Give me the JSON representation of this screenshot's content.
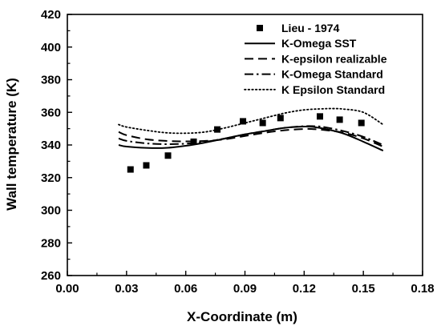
{
  "chart_data": {
    "type": "line",
    "title": "",
    "xlabel": "X-Coordinate (m)",
    "ylabel": "Wall temperature (K)",
    "xlim": [
      0.0,
      0.18
    ],
    "ylim": [
      260,
      420
    ],
    "x_ticks": [
      0.0,
      0.03,
      0.06,
      0.09,
      0.12,
      0.15,
      0.18
    ],
    "x_tick_labels": [
      "0.00",
      "0.03",
      "0.06",
      "0.09",
      "0.12",
      "0.15",
      "0.18"
    ],
    "y_ticks": [
      260,
      280,
      300,
      320,
      340,
      360,
      380,
      400,
      420
    ],
    "y_tick_labels": [
      "260",
      "280",
      "300",
      "320",
      "340",
      "360",
      "380",
      "400",
      "420"
    ],
    "grid": false,
    "legend_position": "top-right",
    "series": [
      {
        "name": "Lieu - 1974",
        "kind": "scatter",
        "marker": "square",
        "x": [
          0.032,
          0.04,
          0.051,
          0.064,
          0.076,
          0.089,
          0.099,
          0.108,
          0.128,
          0.138,
          0.149
        ],
        "y": [
          325,
          327.5,
          333.5,
          342,
          349.5,
          354.5,
          353.5,
          356.5,
          357.5,
          355.5,
          353.5
        ]
      },
      {
        "name": "K-Omega SST",
        "kind": "line",
        "style": "solid",
        "x": [
          0.026,
          0.03,
          0.04,
          0.05,
          0.06,
          0.07,
          0.08,
          0.09,
          0.1,
          0.11,
          0.12,
          0.125,
          0.13,
          0.14,
          0.15,
          0.16
        ],
        "y": [
          340,
          339,
          338.2,
          338.2,
          339.5,
          341.5,
          344,
          346.5,
          348.5,
          350.5,
          351.3,
          351,
          350,
          347,
          342,
          336.5
        ]
      },
      {
        "name": "K-epsilon realizable",
        "kind": "line",
        "style": "dashed",
        "x": [
          0.026,
          0.03,
          0.04,
          0.05,
          0.06,
          0.07,
          0.08,
          0.09,
          0.1,
          0.11,
          0.12,
          0.125,
          0.13,
          0.14,
          0.15,
          0.16
        ],
        "y": [
          348,
          346,
          343.5,
          342.5,
          342.2,
          342.5,
          343.5,
          345.5,
          347.5,
          349,
          349.8,
          349.7,
          349.2,
          347.5,
          344,
          339
        ]
      },
      {
        "name": "K-Omega Standard",
        "kind": "line",
        "style": "dash-dot",
        "x": [
          0.026,
          0.03,
          0.04,
          0.05,
          0.06,
          0.07,
          0.08,
          0.09,
          0.1,
          0.11,
          0.12,
          0.125,
          0.13,
          0.14,
          0.15,
          0.16
        ],
        "y": [
          344,
          342.5,
          341,
          340.5,
          340.8,
          342,
          344,
          346.5,
          348.5,
          350.5,
          351.5,
          351.5,
          351,
          348.5,
          345,
          340
        ]
      },
      {
        "name": "K Epsilon Standard",
        "kind": "line",
        "style": "dotted",
        "x": [
          0.026,
          0.03,
          0.04,
          0.05,
          0.06,
          0.07,
          0.08,
          0.09,
          0.1,
          0.11,
          0.12,
          0.13,
          0.135,
          0.14,
          0.15,
          0.16
        ],
        "y": [
          352.5,
          351,
          349,
          347.5,
          347.2,
          348,
          350.5,
          353.5,
          356.5,
          359.5,
          361.5,
          362.2,
          362.3,
          362,
          360,
          352.5
        ]
      }
    ]
  }
}
